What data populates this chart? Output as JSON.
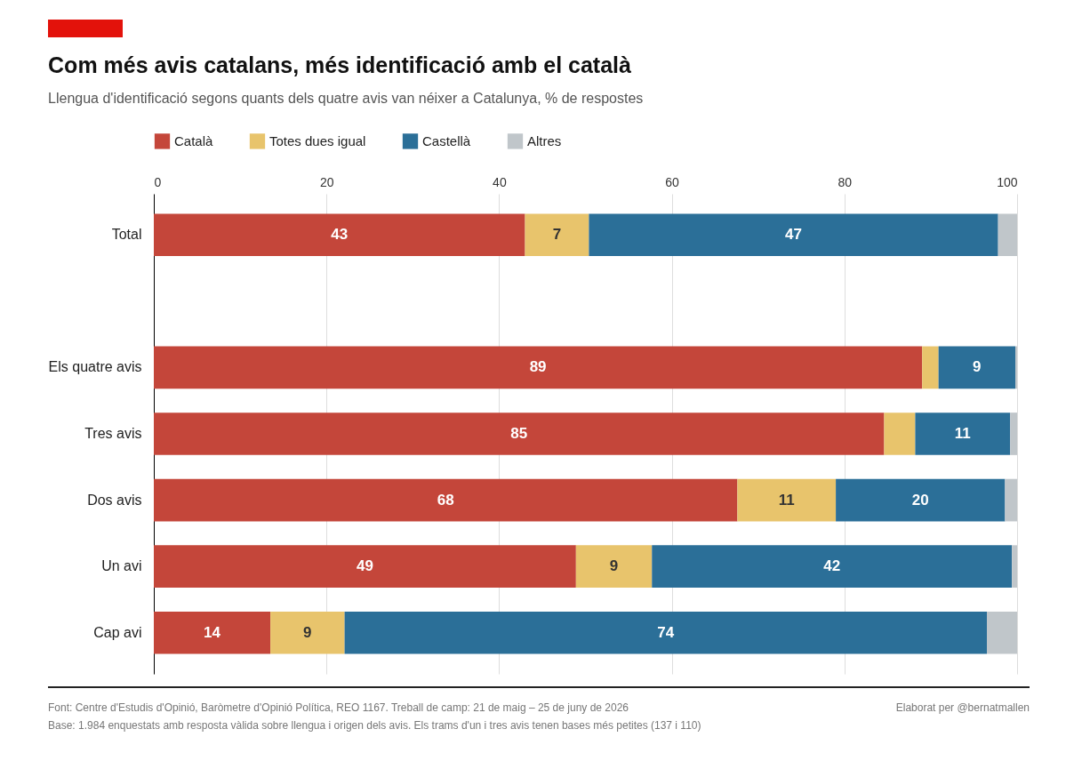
{
  "chart_data": {
    "type": "bar",
    "orientation": "horizontal",
    "stacked": true,
    "title": "Com més avis catalans, més identificació amb el català",
    "subtitle": "Llengua d'identificació segons quants dels quatre avis van néixer a Catalunya, % de respostes",
    "categories": [
      "Total",
      null,
      "Els quatre avis",
      "Tres avis",
      "Dos avis",
      "Un avi",
      "Cap avi"
    ],
    "series": [
      {
        "name": "Català",
        "color": "#c4463a",
        "values": [
          43,
          null,
          89,
          84.6,
          67.6,
          48.9,
          13.5
        ],
        "value_labels": [
          "43",
          null,
          "89",
          "85",
          "68",
          "49",
          "14"
        ]
      },
      {
        "name": "Totes dues igual",
        "color": "#e8c46c",
        "values": [
          7.4,
          null,
          1.9,
          3.6,
          11.4,
          8.8,
          8.6
        ],
        "value_labels": [
          "7",
          null,
          null,
          null,
          "11",
          "9",
          "9"
        ]
      },
      {
        "name": "Castellà",
        "color": "#2b6f98",
        "values": [
          47.4,
          null,
          8.9,
          11,
          19.6,
          41.7,
          74.4
        ],
        "value_labels": [
          "47",
          null,
          "9",
          "11",
          "20",
          "42",
          "74"
        ]
      },
      {
        "name": "Altres",
        "color": "#c0c6ca",
        "values": [
          2.2,
          null,
          0.2,
          0.8,
          1.4,
          0.6,
          3.5
        ],
        "value_labels": [
          null,
          null,
          null,
          null,
          null,
          null,
          null
        ]
      }
    ],
    "xlim": [
      0,
      100
    ],
    "xticks": [
      0,
      20,
      40,
      60,
      80,
      100
    ],
    "grid": "x",
    "legend": "top left",
    "annotations": [
      "Font: Centre d'Estudis d'Opinió, Baròmetre d'Opinió Política, REO 1167. Treball de camp: 21 de maig – 25 de juny de 2026",
      "Base: 1.984 enquestats amb resposta vàlida sobre llengua i origen dels avis. Els trams d'un i tres avis tenen bases més petites (137 i 110)",
      "Elaborat per @bernatmallen"
    ]
  }
}
